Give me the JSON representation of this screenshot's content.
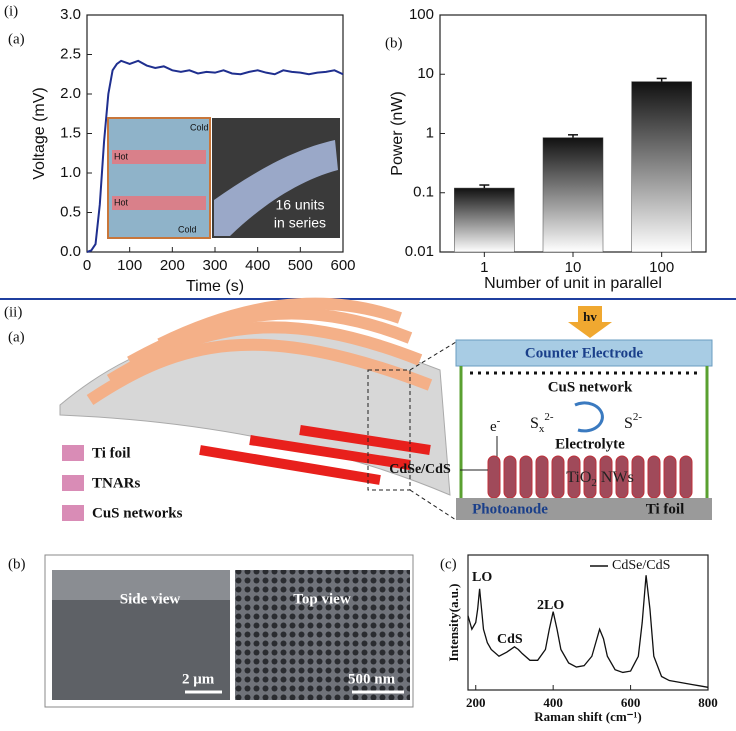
{
  "panel_labels": {
    "part_i": "(i)",
    "i_a": "(a)",
    "i_b": "(b)",
    "part_ii": "(ii)",
    "ii_a": "(a)",
    "ii_b": "(b)",
    "ii_c": "(c)"
  },
  "chart_data": [
    {
      "type": "line",
      "xlabel": "Time (s)",
      "ylabel": "Voltage (mV)",
      "color": "#1f2f8f",
      "x": [
        0,
        10,
        20,
        30,
        40,
        50,
        60,
        70,
        80,
        100,
        120,
        140,
        160,
        180,
        200,
        220,
        240,
        260,
        280,
        300,
        320,
        340,
        360,
        380,
        400,
        420,
        440,
        460,
        480,
        500,
        520,
        540,
        560,
        580,
        600
      ],
      "values": [
        0,
        0.02,
        0.1,
        0.6,
        1.4,
        2.0,
        2.3,
        2.38,
        2.42,
        2.38,
        2.42,
        2.36,
        2.33,
        2.35,
        2.3,
        2.28,
        2.3,
        2.26,
        2.28,
        2.27,
        2.3,
        2.26,
        2.25,
        2.28,
        2.3,
        2.27,
        2.25,
        2.3,
        2.28,
        2.27,
        2.25,
        2.27,
        2.28,
        2.3,
        2.25
      ],
      "xlim": [
        0,
        600
      ],
      "xticks": [
        0,
        100,
        200,
        300,
        400,
        500,
        600
      ],
      "ylim": [
        0,
        3
      ],
      "yticks": [
        {
          "value": 0,
          "label": "0.0"
        },
        0.5,
        {
          "value": 1,
          "label": "1.0"
        },
        1.5,
        {
          "value": 2,
          "label": "2.0"
        },
        2.5,
        {
          "value": 3,
          "label": "3.0"
        }
      ]
    },
    {
      "type": "bar",
      "xlabel": "Number of unit in parallel",
      "ylabel": "Power (nW)",
      "color": "#111111",
      "log_scale": true,
      "categories": [
        "1",
        "10",
        "100"
      ],
      "values": [
        0.12,
        0.85,
        7.5
      ],
      "errors": [
        0.015,
        0.1,
        1.0
      ],
      "ylim": [
        0.01,
        100
      ],
      "yticks": [
        0.01,
        0.1,
        1,
        10,
        100
      ]
    },
    {
      "type": "line",
      "xlabel": "Raman shift (cm⁻¹)",
      "ylabel": "Intensity(a.u.)",
      "x": [
        180,
        190,
        200,
        205,
        210,
        215,
        220,
        230,
        240,
        260,
        280,
        300,
        310,
        320,
        340,
        360,
        380,
        390,
        400,
        410,
        420,
        440,
        460,
        480,
        500,
        510,
        520,
        530,
        540,
        560,
        580,
        600,
        620,
        630,
        640,
        650,
        660,
        680,
        700,
        720,
        740,
        760,
        780,
        800
      ],
      "series": [
        {
          "name": "CdSe/CdS",
          "color": "#111111",
          "values": [
            0.55,
            0.45,
            0.5,
            0.6,
            0.75,
            0.6,
            0.45,
            0.35,
            0.3,
            0.25,
            0.28,
            0.32,
            0.3,
            0.27,
            0.22,
            0.22,
            0.3,
            0.45,
            0.58,
            0.45,
            0.3,
            0.2,
            0.17,
            0.18,
            0.25,
            0.35,
            0.45,
            0.38,
            0.25,
            0.15,
            0.13,
            0.14,
            0.25,
            0.5,
            0.85,
            0.6,
            0.25,
            0.1,
            0.07,
            0.06,
            0.05,
            0.04,
            0.03,
            0.02
          ]
        }
      ],
      "xlim": [
        180,
        800
      ],
      "xticks": [
        200,
        400,
        600,
        800
      ],
      "ylim": [
        0,
        1
      ],
      "annotations": [
        "LO",
        "CdS",
        "2LO"
      ]
    }
  ],
  "inset": {
    "cold": "Cold",
    "hot": "Hot",
    "caption_1": "16 units",
    "caption_2": "in series"
  },
  "diagram": {
    "light": "hv",
    "counter_electrode": "Counter Electrode",
    "cus_network": "CuS network",
    "sx": {
      "base": "S",
      "sub": "x",
      "sup": "2-"
    },
    "s2": {
      "base": "S",
      "sup": "2-"
    },
    "electrolyte": "Electrolyte",
    "electron": {
      "base": "e",
      "sup": "-"
    },
    "cdse_cds": "CdSe/CdS",
    "tio2": {
      "base": "TiO",
      "sub": "2",
      "rest": "NWs"
    },
    "photoanode": "Photoanode",
    "ti_foil": "Ti foil",
    "legend": [
      "Ti foil",
      "TNARs",
      "CuS networks"
    ]
  },
  "micrographs": {
    "side": "Side view",
    "top": "Top view",
    "side_scale": "2 μm",
    "top_scale": "500 nm"
  }
}
